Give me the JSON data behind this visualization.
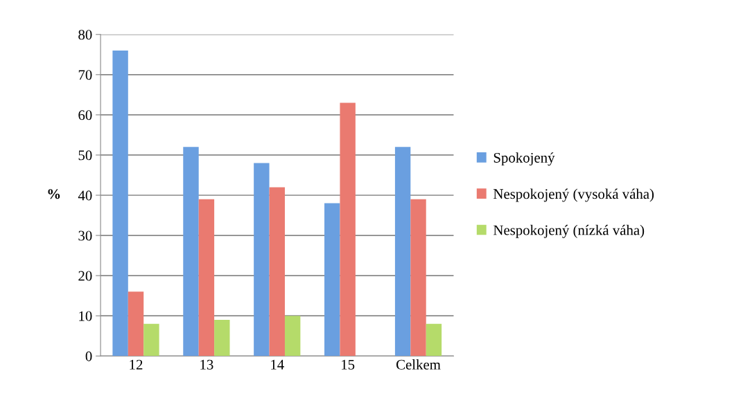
{
  "chart_data": {
    "type": "bar",
    "ylabel": "%",
    "categories": [
      "12",
      "13",
      "14",
      "15",
      "Celkem"
    ],
    "series": [
      {
        "name": "Spokojený",
        "color": "#6a9fe0",
        "values": [
          76,
          52,
          48,
          38,
          52
        ]
      },
      {
        "name": "Nespokojený (vysoká váha)",
        "color": "#ea7a70",
        "values": [
          16,
          39,
          42,
          63,
          39
        ]
      },
      {
        "name": "Nespokojený (nízká váha)",
        "color": "#b5db6a",
        "values": [
          8,
          9,
          10,
          null,
          8
        ]
      }
    ],
    "ylim": [
      0,
      80
    ],
    "yticks": [
      0,
      10,
      20,
      30,
      40,
      50,
      60,
      70,
      80
    ],
    "grid": "y",
    "legend": "right"
  }
}
